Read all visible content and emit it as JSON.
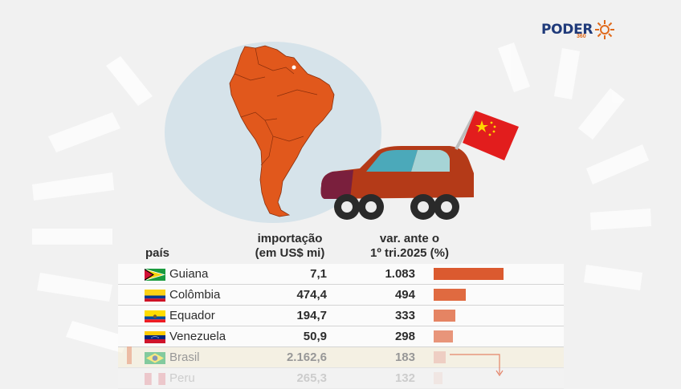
{
  "brand": {
    "name": "PODER",
    "suffix": "360"
  },
  "colors": {
    "accent": "#d9552a",
    "highlight_row": "#f8efd4",
    "map_land": "#e1581c",
    "map_bg": "#d6e3ea",
    "car": "#b43a18"
  },
  "headers": {
    "country": "país",
    "import_l1": "importação",
    "import_l2": "(em US$ mi)",
    "var_l1": "var. ante o",
    "var_l2": "1º tri.2025 (%)"
  },
  "chart_data": {
    "type": "bar",
    "categories": [
      "Guiana",
      "Colômbia",
      "Equador",
      "Venezuela",
      "Brasil",
      "Peru"
    ],
    "series": [
      {
        "name": "importação (em US$ mi)",
        "values": [
          7.1,
          474.4,
          194.7,
          50.9,
          2162.6,
          265.3
        ]
      },
      {
        "name": "var. ante o 1º tri.2025 (%)",
        "values": [
          1083,
          494,
          333,
          298,
          183,
          132
        ]
      }
    ],
    "rows": [
      {
        "country": "Guiana",
        "flag": "guyana-flag",
        "import": "7,1",
        "var": "1.083",
        "var_value": 1083
      },
      {
        "country": "Colômbia",
        "flag": "colombia-flag",
        "import": "474,4",
        "var": "494",
        "var_value": 494
      },
      {
        "country": "Equador",
        "flag": "ecuador-flag",
        "import": "194,7",
        "var": "333",
        "var_value": 333
      },
      {
        "country": "Venezuela",
        "flag": "venezuela-flag",
        "import": "50,9",
        "var": "298",
        "var_value": 298
      },
      {
        "country": "Brasil",
        "flag": "brazil-flag",
        "import": "2.162,6",
        "var": "183",
        "var_value": 183,
        "highlight": true
      },
      {
        "country": "Peru",
        "flag": "peru-flag",
        "import": "265,3",
        "var": "132",
        "var_value": 132
      }
    ],
    "bar_colors": [
      "#db5a2f",
      "#e06a40",
      "#e58463",
      "#e8957a",
      "#eba48c",
      "#f0b8a6"
    ],
    "var_max": 1083
  }
}
